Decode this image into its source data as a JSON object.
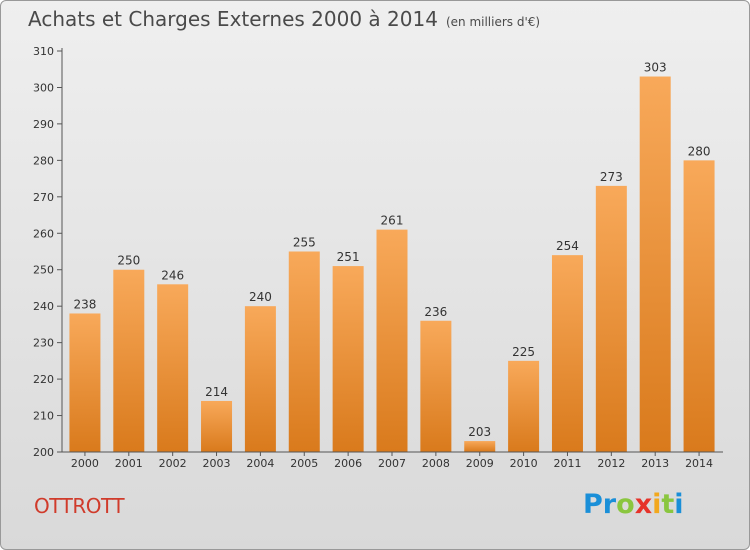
{
  "header": {
    "title": "Achats et Charges Externes 2000 à 2014",
    "unit": "(en milliers d'€)"
  },
  "commune": "OTTROTT",
  "logo": {
    "letters": [
      "P",
      "r",
      "o",
      "x",
      "i",
      "t",
      "i"
    ],
    "colors": [
      "#1a8fd8",
      "#1a8fd8",
      "#8ac63f",
      "#e6332a",
      "#f2a81e",
      "#8ac63f",
      "#1a8fd8"
    ]
  },
  "colors": {
    "bar_light": "#f8a95a",
    "bar_dark": "#d97a1c",
    "commune": "#d03b2b"
  },
  "chart_data": {
    "type": "bar",
    "categories": [
      "2000",
      "2001",
      "2002",
      "2003",
      "2004",
      "2005",
      "2006",
      "2007",
      "2008",
      "2009",
      "2010",
      "2011",
      "2012",
      "2013",
      "2014"
    ],
    "values": [
      238,
      250,
      246,
      214,
      240,
      255,
      251,
      261,
      236,
      203,
      225,
      254,
      273,
      303,
      280
    ],
    "title": "Achats et Charges Externes 2000 à 2014",
    "ylim": [
      200,
      310
    ],
    "yticks": [
      200,
      210,
      220,
      230,
      240,
      250,
      260,
      270,
      280,
      290,
      300,
      310
    ],
    "grid": false,
    "data_labels": true
  }
}
